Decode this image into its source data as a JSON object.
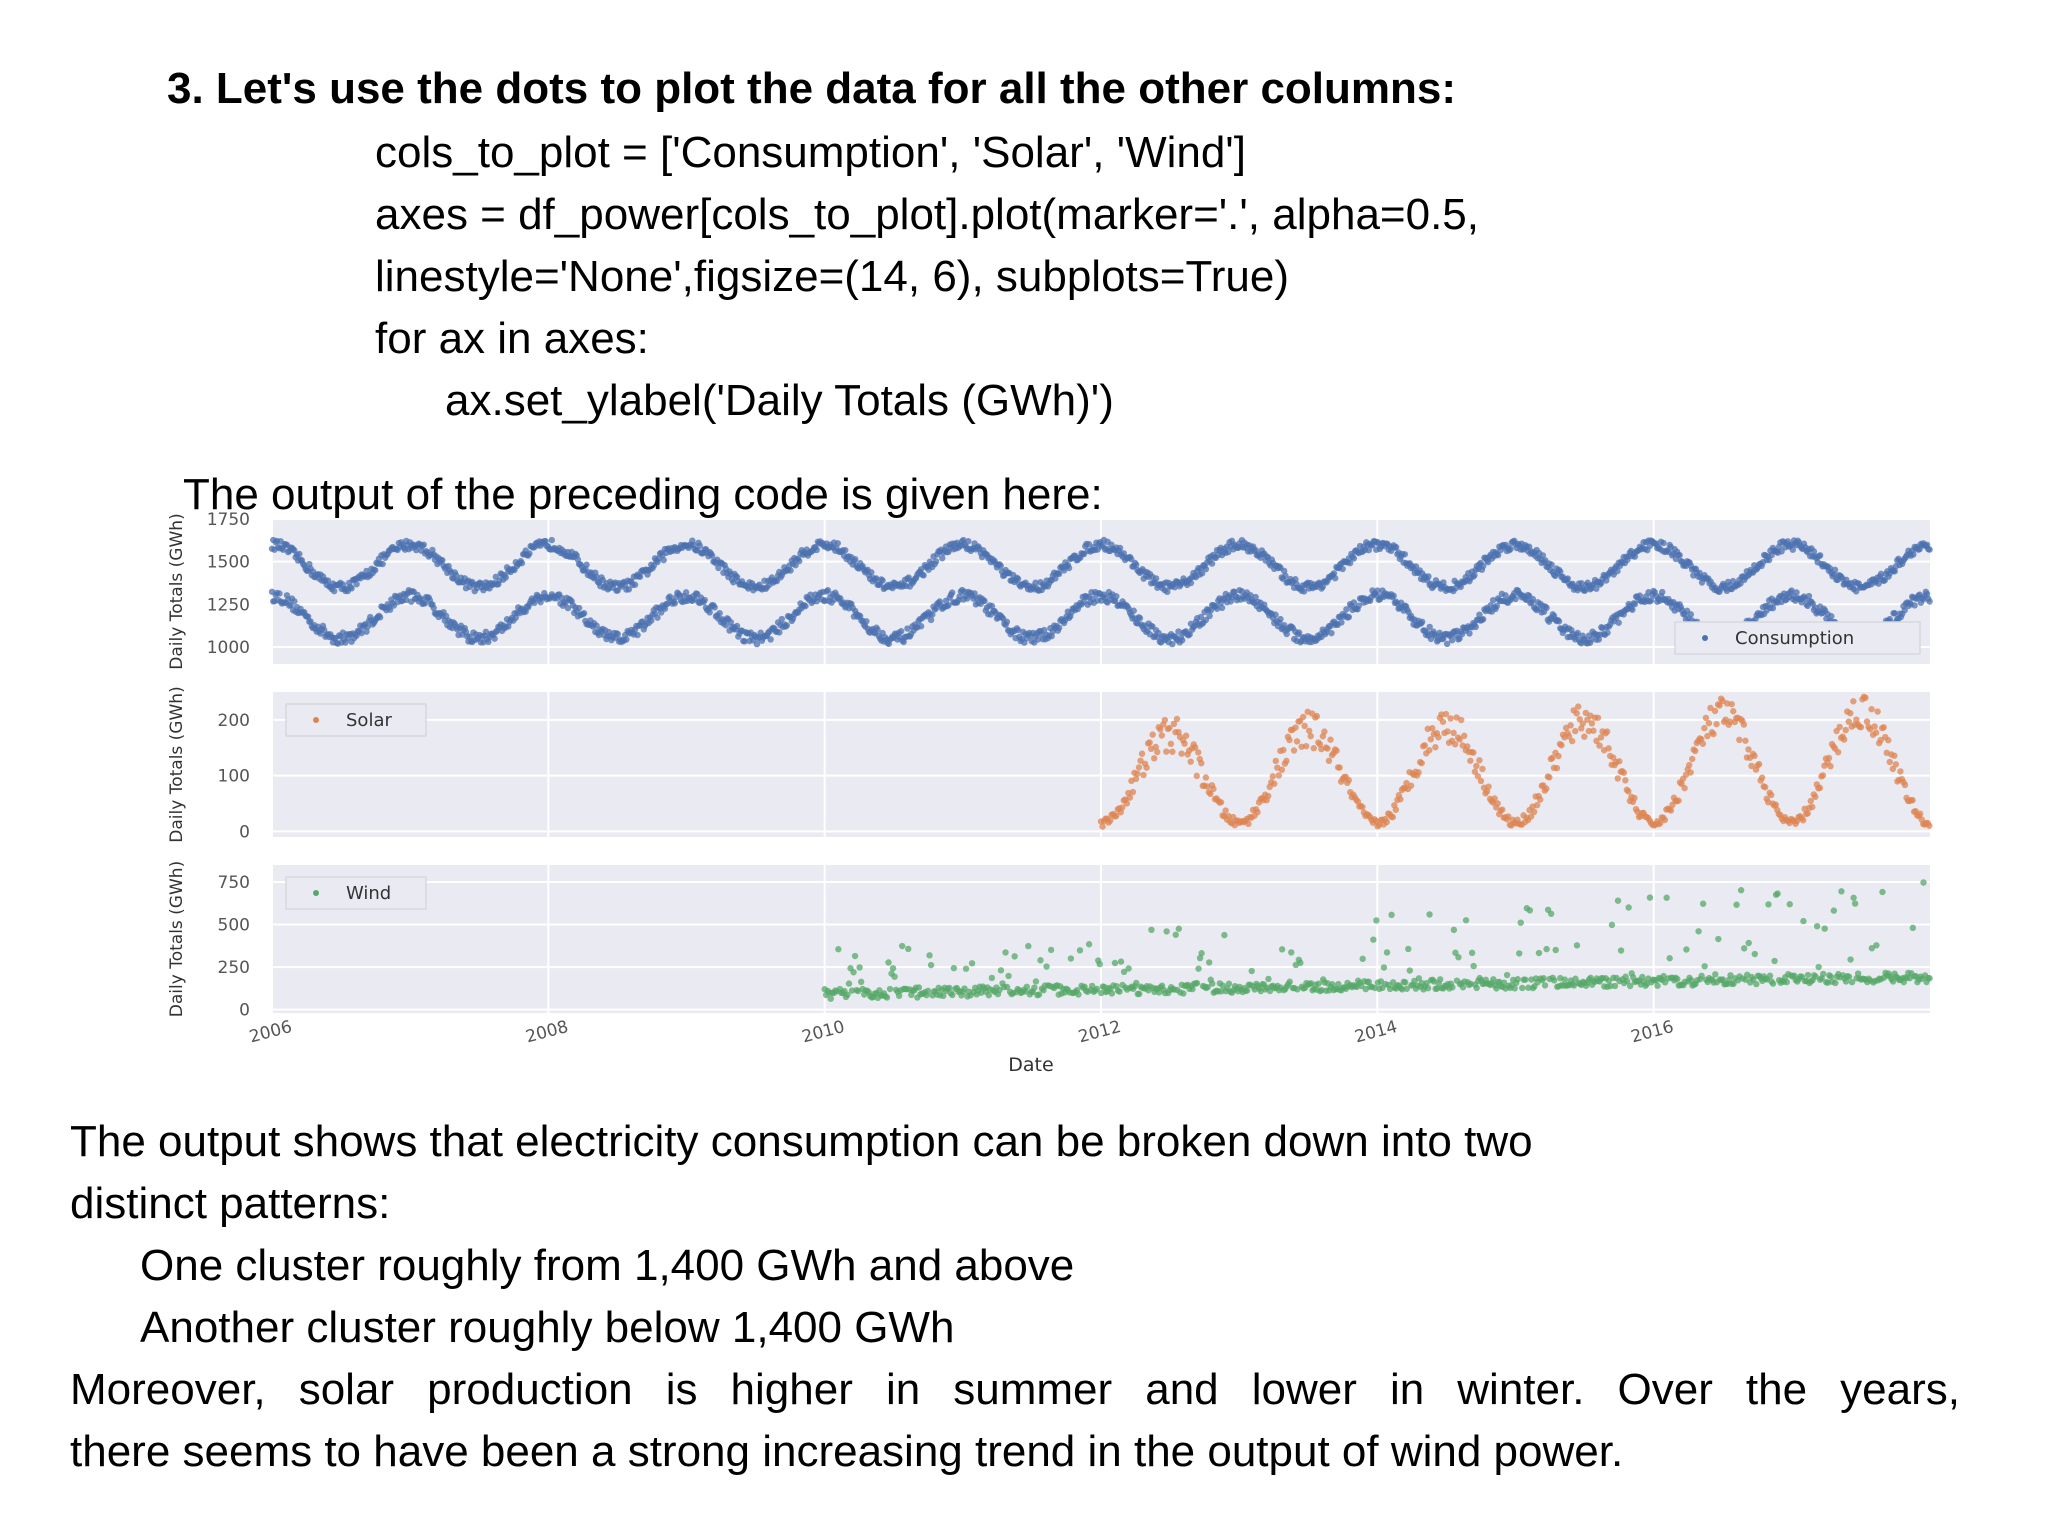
{
  "heading": "3. Let's use the dots to plot the data for all the other columns:",
  "code_lines": [
    "cols_to_plot = ['Consumption', 'Solar', 'Wind']",
    "axes = df_power[cols_to_plot].plot(marker='.', alpha=0.5,",
    "linestyle='None',figsize=(14, 6), subplots=True)",
    "for ax in axes:",
    "ax.set_ylabel('Daily Totals (GWh)')"
  ],
  "intro": "The output of the preceding code is given here:",
  "paragraph": {
    "line1": "The output shows that electricity consumption can be broken down into two",
    "line2": "distinct patterns:",
    "bullet1": "One cluster roughly from 1,400 GWh and above",
    "bullet2": "Another cluster roughly below 1,400 GWh",
    "line3": "Moreover, solar production is higher in summer and lower in winter. Over the years,",
    "line4": "there seems to have been a strong increasing trend in the output of wind power."
  },
  "chart_data": {
    "type": "scatter",
    "xlabel": "Date",
    "x_ticks": [
      "2006",
      "2008",
      "2010",
      "2012",
      "2014",
      "2016"
    ],
    "xlim": [
      2006,
      2018
    ],
    "colors": {
      "consumption": "#4c72b0",
      "solar": "#dd8452",
      "wind": "#55a868",
      "panel": "#eaeaf2",
      "grid": "#ffffff"
    },
    "panels": [
      {
        "name": "Consumption",
        "ylabel": "Daily Totals (GWh)",
        "ylim": [
          900,
          1750
        ],
        "yticks": [
          "1750",
          "1500",
          "1250",
          "1000"
        ],
        "ytick_values": [
          1750,
          1500,
          1250,
          1000
        ],
        "legend": "Consumption",
        "legend_loc": "bottom-right",
        "data_start": 2006,
        "workday_winter": 1600,
        "workday_summer": 1350,
        "weekend_winter": 1300,
        "weekend_summer": 1050
      },
      {
        "name": "Solar",
        "ylabel": "Daily Totals (GWh)",
        "ylim": [
          -10,
          250
        ],
        "yticks": [
          "200",
          "100",
          "0"
        ],
        "ytick_values": [
          200,
          100,
          0
        ],
        "legend": "Solar",
        "legend_loc": "top-left",
        "data_start": 2012,
        "summer_peak_start": 170,
        "summer_peak_end": 220,
        "winter_low": 15
      },
      {
        "name": "Wind",
        "ylabel": "Daily Totals (GWh)",
        "ylim": [
          -20,
          850
        ],
        "yticks": [
          "750",
          "500",
          "250",
          "0"
        ],
        "ytick_values": [
          750,
          500,
          250,
          0
        ],
        "legend": "Wind",
        "legend_loc": "top-left",
        "data_start": 2010,
        "base_start": 80,
        "base_end": 180,
        "spike_start": 350,
        "spike_end": 780
      }
    ]
  }
}
